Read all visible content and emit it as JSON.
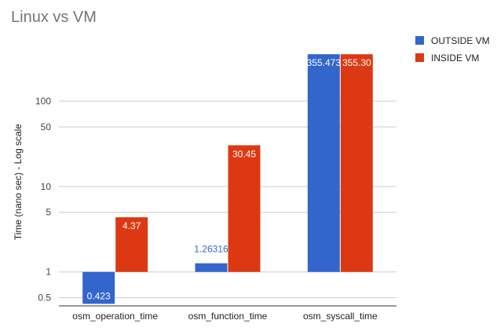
{
  "chart_data": {
    "type": "bar",
    "title": "Linux vs VM",
    "ylabel": "Time (nano sec) - Log scale",
    "xlabel": "",
    "yscale": "log",
    "ylim": [
      0.4,
      500
    ],
    "yticks": [
      0.5,
      1,
      5,
      10,
      50,
      100
    ],
    "ytick_labels": [
      "0.5",
      "1",
      "5",
      "10",
      "50",
      "100"
    ],
    "categories": [
      "osm_operation_time",
      "osm_function_time",
      "osm_syscall_time"
    ],
    "series": [
      {
        "name": "OUTSIDE VM",
        "color": "#3366cc",
        "values": [
          0.423,
          1.26316,
          355.473
        ],
        "labels": [
          "0.423",
          "1.26316",
          "355.473"
        ]
      },
      {
        "name": "INSIDE VM",
        "color": "#dc3912",
        "values": [
          4.37,
          30.45,
          355.3
        ],
        "labels": [
          "4.37",
          "30.45",
          "355.30"
        ]
      }
    ],
    "legend": "right",
    "grid": true
  }
}
